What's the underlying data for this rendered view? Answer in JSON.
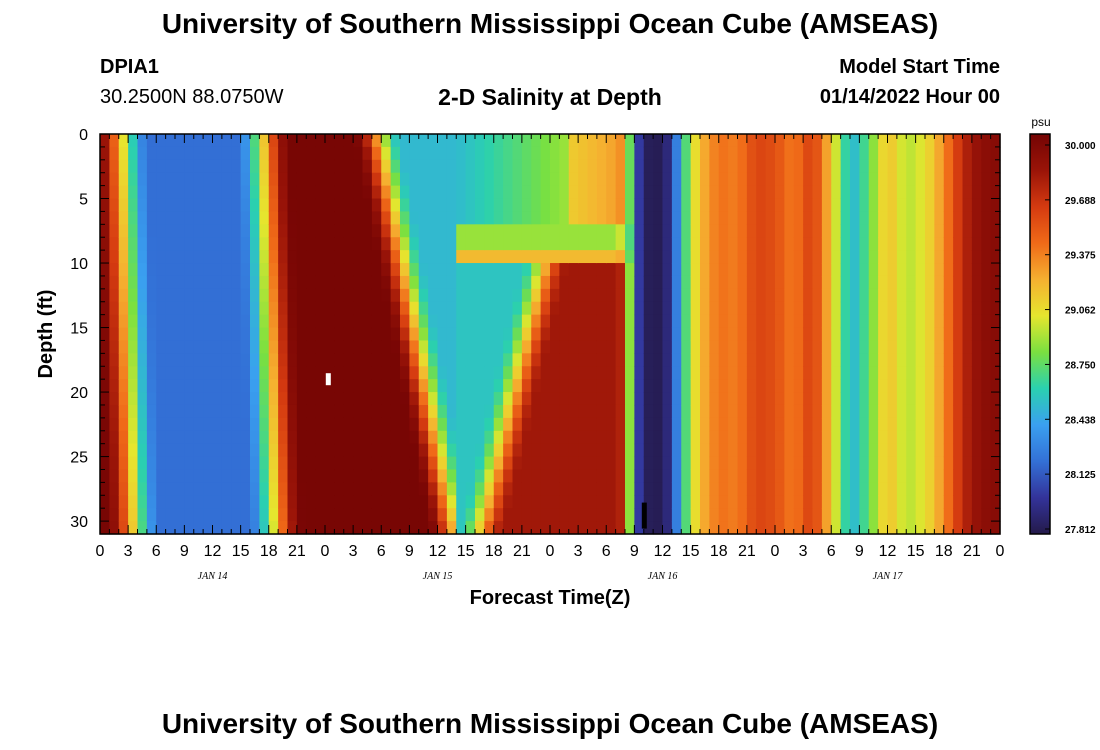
{
  "header": {
    "title": "University of Southern Mississippi Ocean Cube (AMSEAS)",
    "station_id": "DPIA1",
    "coords": "30.2500N  88.0750W",
    "subtitle": "2-D Salinity at Depth",
    "model_start_label": "Model Start Time",
    "model_start_value": "01/14/2022 Hour 00"
  },
  "footer": {
    "title": "University of Southern Mississippi Ocean Cube (AMSEAS)"
  },
  "chart_data": {
    "type": "heatmap",
    "title": "2-D Salinity at Depth",
    "xlabel": "Forecast Time(Z)",
    "ylabel": "Depth (ft)",
    "x_hours_range": [
      0,
      96
    ],
    "x_tick_step_hours": 3,
    "x_tick_labels": [
      "0",
      "3",
      "6",
      "9",
      "12",
      "15",
      "18",
      "21",
      "0",
      "3",
      "6",
      "9",
      "12",
      "15",
      "18",
      "21",
      "0",
      "3",
      "6",
      "9",
      "12",
      "15",
      "18",
      "21",
      "0",
      "3",
      "6",
      "9",
      "12",
      "15",
      "18",
      "21",
      "0"
    ],
    "date_labels": [
      {
        "label": "JAN 14",
        "hour": 12
      },
      {
        "label": "JAN 15",
        "hour": 36
      },
      {
        "label": "JAN 16",
        "hour": 60
      },
      {
        "label": "JAN 17",
        "hour": 84
      }
    ],
    "y_range": [
      0,
      31
    ],
    "y_ticks": [
      0,
      5,
      10,
      15,
      20,
      25,
      30
    ],
    "colorbar": {
      "unit": "psu",
      "min": 27.812,
      "max": 30.0,
      "tick_labels": [
        "30.000",
        "29.688",
        "29.375",
        "29.062",
        "28.750",
        "28.438",
        "28.125",
        "27.812"
      ],
      "colors": [
        "#241a4a",
        "#33339a",
        "#3370d6",
        "#3aa0f0",
        "#2ad0b0",
        "#7ae040",
        "#e6e62e",
        "#f5b030",
        "#f06a18",
        "#d43a10",
        "#9a1408",
        "#740404"
      ]
    },
    "markers": [
      {
        "hour": 24.3,
        "depth": 19.0,
        "color": "#ffffff"
      },
      {
        "hour": 58.0,
        "depth": 29.5,
        "color": "#000000"
      }
    ]
  }
}
